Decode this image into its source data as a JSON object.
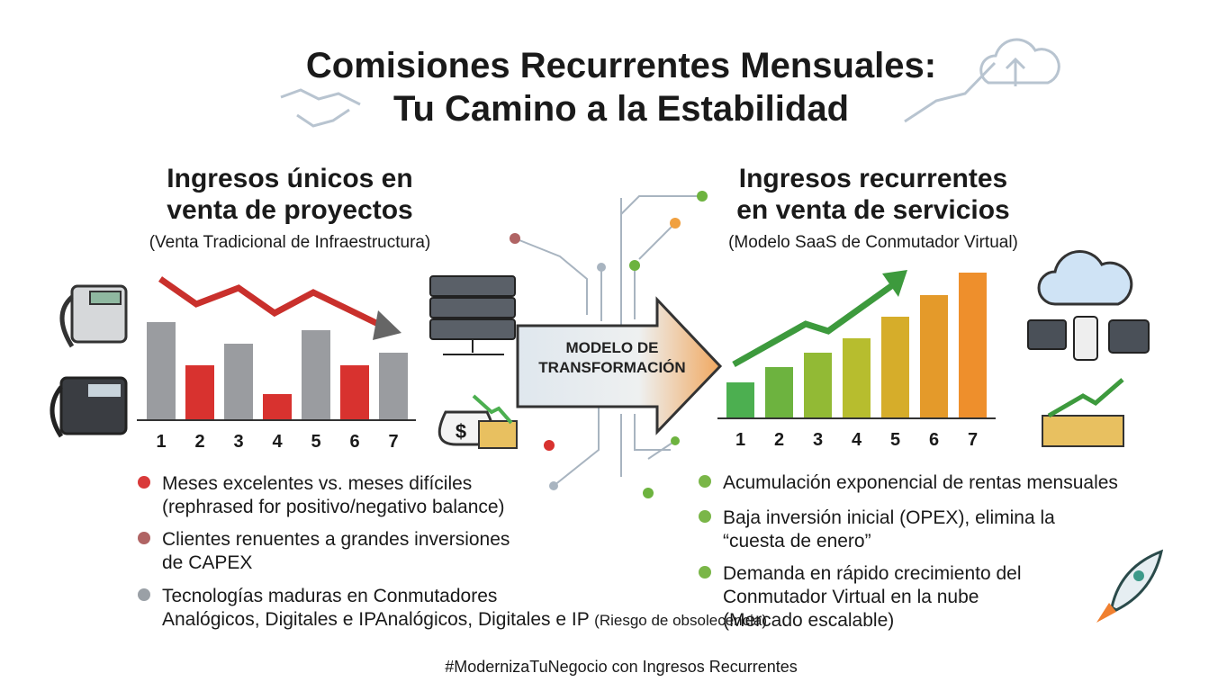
{
  "title": [
    "Comisiones Recurrentes Mensuales:",
    "Tu Camino a la Estabilidad"
  ],
  "center_arrow": [
    "MODELO DE",
    "TRANSFORMACIÓN"
  ],
  "left": {
    "heading": [
      "Ingresos únicos en",
      "venta de proyectos"
    ],
    "subheading": "(Venta Tradicional de Infraestructura)",
    "chart": {
      "type": "bar",
      "categories": [
        "1",
        "2",
        "3",
        "4",
        "5",
        "6",
        "7"
      ],
      "values": [
        109,
        61,
        85,
        29,
        100,
        61,
        75
      ],
      "colors": [
        "#9a9ca0",
        "#d8322f",
        "#9a9ca0",
        "#d8322f",
        "#9a9ca0",
        "#d8322f",
        "#9a9ca0"
      ]
    },
    "bullets": [
      {
        "color": "#d93a3a",
        "lines": [
          "Meses excelentes vs. meses difíciles",
          "(rephrased for positivo/negativo balance)"
        ]
      },
      {
        "color": "#b06464",
        "lines": [
          "Clientes renuentes a grandes inversiones",
          "de CAPEX"
        ]
      },
      {
        "color": "#9aa0a6",
        "lines": [
          "Tecnologías maduras en Conmutadores",
          "Analógicos, Digitales e IP"
        ],
        "note": "(Riesgo de obsolecencia)"
      }
    ]
  },
  "right": {
    "heading": [
      "Ingresos recurrentes",
      "en venta de servicios"
    ],
    "subheading": "(Modelo SaaS de Conmutador Virtual)",
    "chart": {
      "type": "bar",
      "categories": [
        "1",
        "2",
        "3",
        "4",
        "5",
        "6",
        "7"
      ],
      "values": [
        40,
        57,
        73,
        89,
        113,
        137,
        162
      ],
      "colors": [
        "#4caf50",
        "#6db33f",
        "#92ba35",
        "#b7bd2e",
        "#d6ad2a",
        "#e49a2a",
        "#ee8f2c"
      ]
    },
    "bullets": [
      {
        "color": "#7ab648",
        "lines": [
          "Acumulación exponencial de rentas mensuales"
        ]
      },
      {
        "color": "#7ab648",
        "lines": [
          "Baja inversión inicial (OPEX), elimina la",
          "“cuesta de enero”"
        ]
      },
      {
        "color": "#7ab648",
        "lines": [
          "Demanda en rápido crecimiento del",
          "Conmutador Virtual en la nube",
          "(Mercado escalable)"
        ]
      }
    ]
  },
  "footer": "#ModernizaTuNegocio con Ingresos Recurrentes"
}
